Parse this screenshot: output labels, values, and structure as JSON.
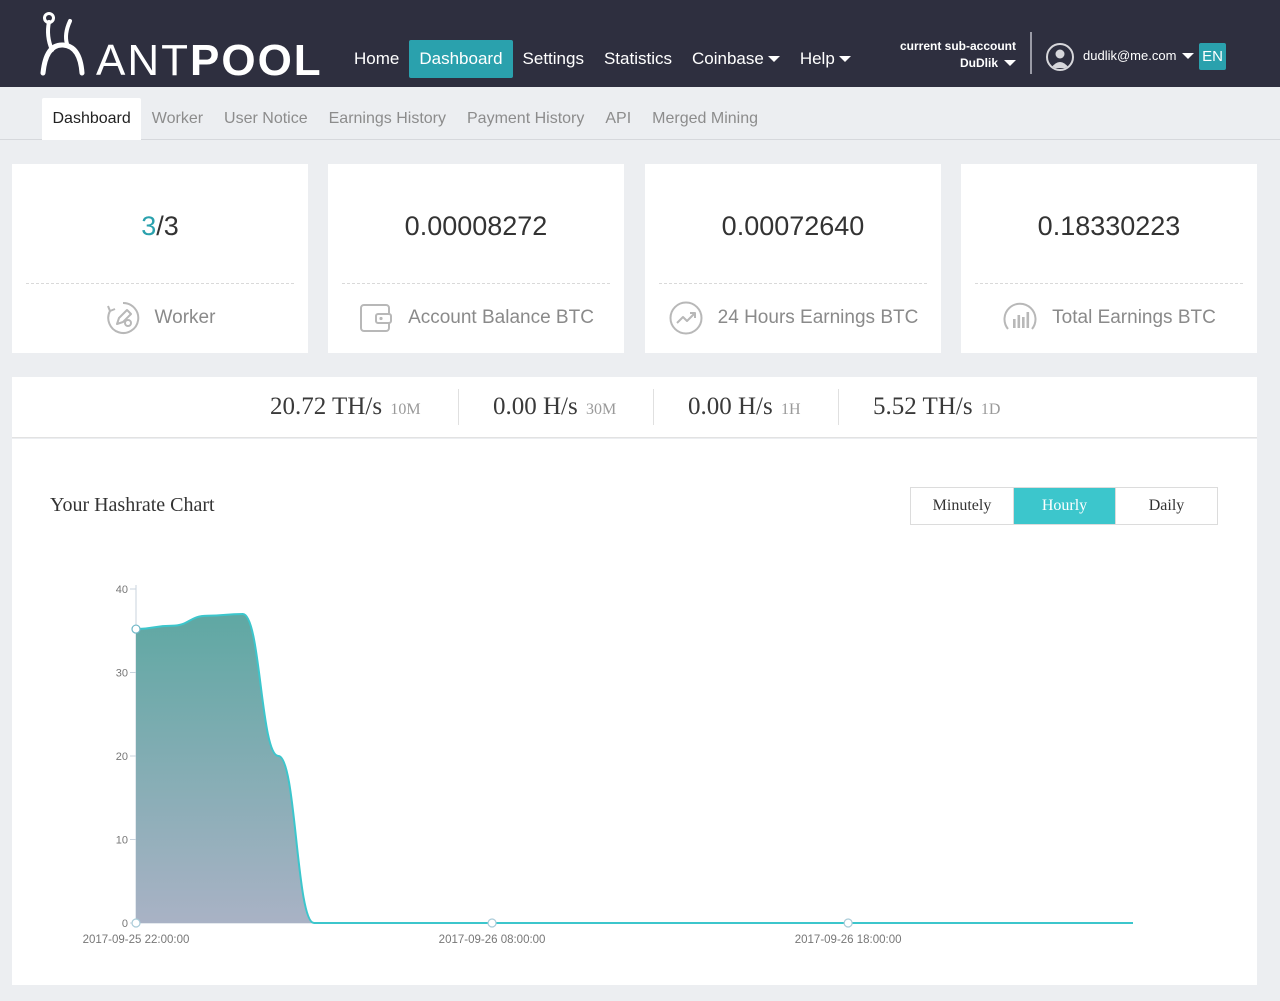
{
  "brand": {
    "logo_ant": "ANT",
    "logo_pool": "POOL"
  },
  "mainnav": {
    "items": [
      {
        "label": "Home",
        "active": false,
        "dropdown": false
      },
      {
        "label": "Dashboard",
        "active": true,
        "dropdown": false
      },
      {
        "label": "Settings",
        "active": false,
        "dropdown": false
      },
      {
        "label": "Statistics",
        "active": false,
        "dropdown": false
      },
      {
        "label": "Coinbase",
        "active": false,
        "dropdown": true
      },
      {
        "label": "Help",
        "active": false,
        "dropdown": true
      }
    ]
  },
  "account": {
    "subaccount_label": "current sub-account",
    "subaccount_name": "DuDlik",
    "email": "dudlik@me.com",
    "language": "EN"
  },
  "subnav": {
    "tabs": [
      {
        "label": "Dashboard",
        "active": true
      },
      {
        "label": "Worker",
        "active": false
      },
      {
        "label": "User Notice",
        "active": false
      },
      {
        "label": "Earnings History",
        "active": false
      },
      {
        "label": "Payment History",
        "active": false
      },
      {
        "label": "API",
        "active": false
      },
      {
        "label": "Merged Mining",
        "active": false
      }
    ]
  },
  "cards": [
    {
      "value_active": "3",
      "value_rest": "/3",
      "label": "Worker",
      "icon": "worker-icon"
    },
    {
      "value": "0.00008272",
      "label": "Account Balance BTC",
      "icon": "wallet-icon"
    },
    {
      "value": "0.00072640",
      "label": "24 Hours Earnings BTC",
      "icon": "trend-up-icon"
    },
    {
      "value": "0.18330223",
      "label": "Total Earnings BTC",
      "icon": "bar-chart-icon"
    }
  ],
  "hashrates": [
    {
      "value": "20.72 TH/s",
      "period": "10M"
    },
    {
      "value": "0.00 H/s",
      "period": "30M"
    },
    {
      "value": "0.00 H/s",
      "period": "1H"
    },
    {
      "value": "5.52 TH/s",
      "period": "1D"
    }
  ],
  "chart": {
    "title": "Your Hashrate Chart",
    "ranges": [
      {
        "label": "Minutely",
        "active": false
      },
      {
        "label": "Hourly",
        "active": true
      },
      {
        "label": "Daily",
        "active": false
      }
    ]
  },
  "colors": {
    "topbar": "#2e2f3f",
    "accent": "#2aa1ad",
    "range_active": "#3cc6cc",
    "area_top": "#5fa8a3",
    "area_bottom": "#a9b2c5"
  },
  "chart_data": {
    "type": "area",
    "title": "",
    "xlabel": "",
    "ylabel": "",
    "ylim": [
      0,
      40
    ],
    "yticks": [
      0,
      10,
      20,
      30,
      40
    ],
    "xticks": [
      "2017-09-25 22:00:00",
      "2017-09-26 08:00:00",
      "2017-09-26 18:00:00"
    ],
    "xlim": [
      "2017-09-25 22:00",
      "2017-09-27 02:00"
    ],
    "grid": false,
    "series": [
      {
        "x": [
          "2017-09-25 22:00",
          "2017-09-25 23:00",
          "2017-09-26 00:00",
          "2017-09-26 01:00",
          "2017-09-26 02:00",
          "2017-09-26 03:00",
          "2017-09-26 04:00",
          "2017-09-26 05:00",
          "2017-09-26 06:00",
          "2017-09-26 07:00",
          "2017-09-26 08:00",
          "2017-09-26 09:00",
          "2017-09-26 10:00",
          "2017-09-26 11:00",
          "2017-09-26 12:00",
          "2017-09-26 13:00",
          "2017-09-26 14:00",
          "2017-09-26 15:00",
          "2017-09-26 16:00",
          "2017-09-26 17:00",
          "2017-09-26 18:00",
          "2017-09-26 19:00",
          "2017-09-26 20:00",
          "2017-09-26 21:00",
          "2017-09-26 22:00",
          "2017-09-26 23:00",
          "2017-09-27 00:00",
          "2017-09-27 01:00",
          "2017-09-27 02:00"
        ],
        "values": [
          35.2,
          35.6,
          36.8,
          37.0,
          20.0,
          0,
          0,
          0,
          0,
          0,
          0,
          0,
          0,
          0,
          0,
          0,
          0,
          0,
          0,
          0,
          0,
          0,
          0,
          0,
          0,
          0,
          0,
          0,
          0
        ]
      }
    ]
  }
}
